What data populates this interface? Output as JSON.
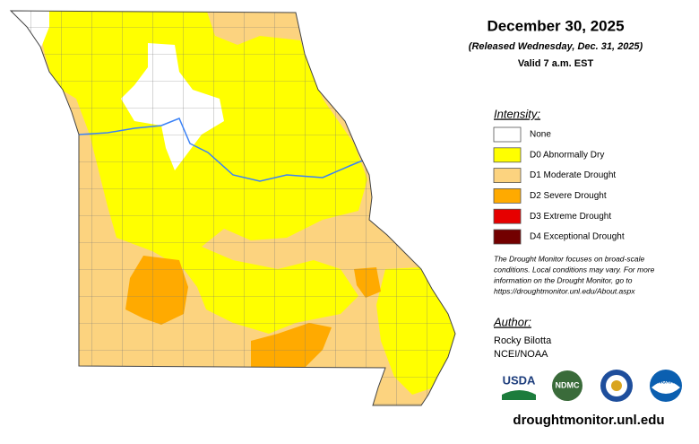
{
  "header": {
    "title": "December 30, 2025",
    "released": "(Released Wednesday, Dec. 31, 2025)",
    "valid": "Valid 7 a.m. EST"
  },
  "legend": {
    "title": "Intensity:",
    "items": [
      "None",
      "D0 Abnormally Dry",
      "D1 Moderate Drought",
      "D2 Severe Drought",
      "D3 Extreme Drought",
      "D4 Exceptional Drought"
    ]
  },
  "note": [
    "The Drought Monitor focuses on broad-scale",
    "conditions. Local conditions may vary. For more",
    "information on the Drought Monitor, go to",
    "https://droughtmonitor.unl.edu/About.aspx"
  ],
  "author": {
    "title": "Author:",
    "name": "Rocky Bilotta",
    "org": "NCEI/NOAA"
  },
  "logos": [
    "USDA",
    "NDMC",
    "NOAA"
  ],
  "footer": "droughtmonitor.unl.edu"
}
